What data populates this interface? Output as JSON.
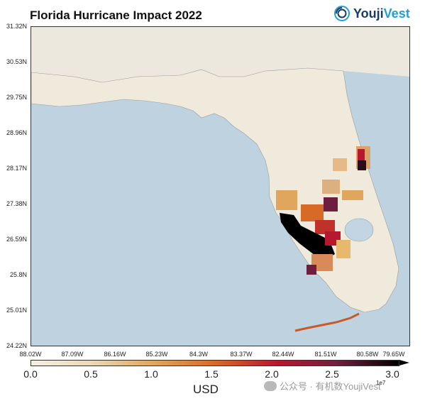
{
  "title": "Florida Hurricane Impact 2022",
  "logo": {
    "part1": "Youji",
    "part2": "Vest",
    "icon": "youjivest-logo-icon"
  },
  "map": {
    "lat_labels": [
      "31.32N",
      "30.53N",
      "29.75N",
      "28.96N",
      "28.17N",
      "27.38N",
      "26.59N",
      "25.8N",
      "25.01N",
      "24.22N"
    ],
    "lon_labels": [
      "88.02W",
      "87.09W",
      "86.16W",
      "85.23W",
      "84.3W",
      "83.37W",
      "82.44W",
      "81.51W",
      "80.58W",
      "79.65W"
    ],
    "colors": {
      "water": "#bfd2e0",
      "land": "#efeadb",
      "border": "#333333"
    }
  },
  "colorbar": {
    "ticks": [
      "0.0",
      "0.5",
      "1.0",
      "1.5",
      "2.0",
      "2.5",
      "3.0"
    ],
    "end_label": "1e7",
    "label": "USD",
    "colors": [
      "#f5f0e4",
      "#ead8b8",
      "#e0a65e",
      "#d86a28",
      "#b8182e",
      "#6e1f3f",
      "#000000"
    ]
  },
  "watermark": "公众号 · 有机数YoujiVest"
}
